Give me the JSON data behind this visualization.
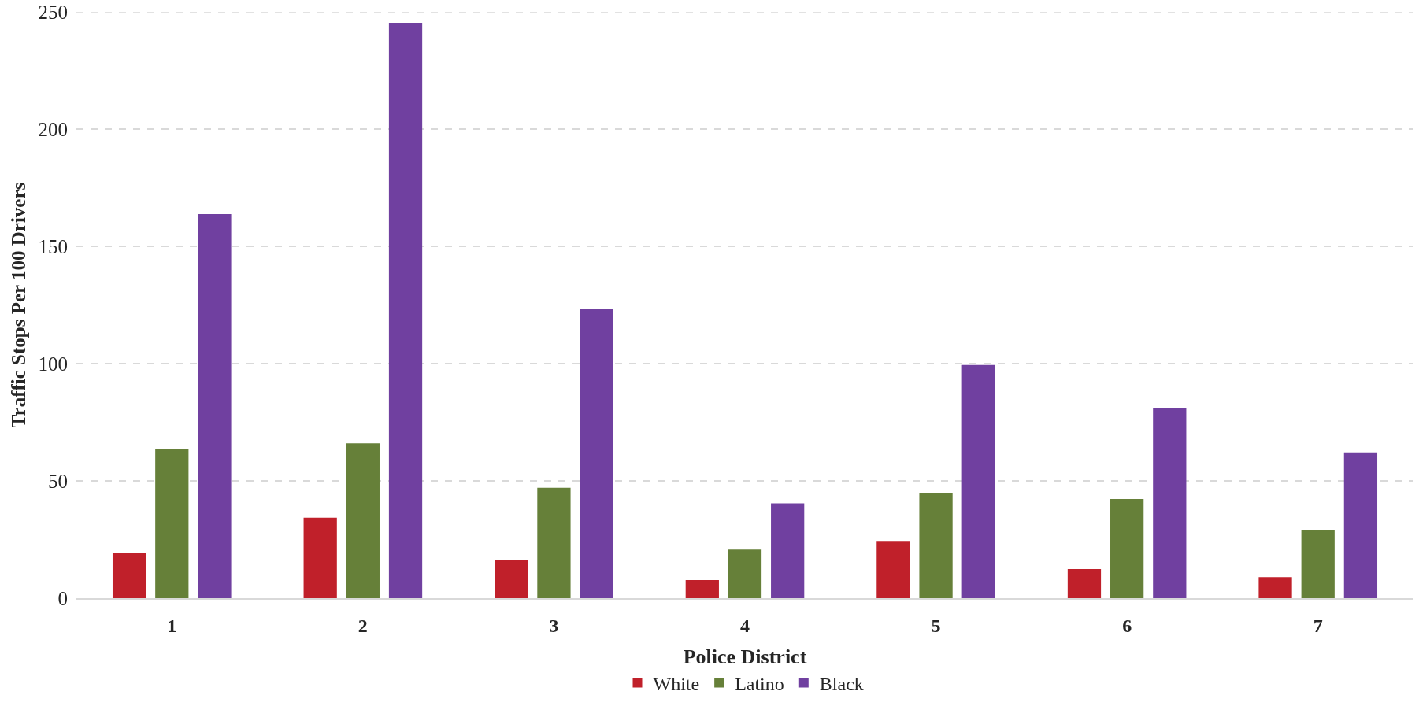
{
  "chart_data": {
    "type": "bar",
    "xlabel": "Police District",
    "ylabel": "Traffic Stops Per 100 Drivers",
    "categories": [
      "1",
      "2",
      "3",
      "4",
      "5",
      "6",
      "7"
    ],
    "series": [
      {
        "name": "White",
        "color": "#c0202a",
        "values": [
          19.4,
          34.3,
          16.2,
          7.7,
          24.4,
          12.4,
          9.0
        ]
      },
      {
        "name": "Latino",
        "color": "#668039",
        "values": [
          63.7,
          66.0,
          47.1,
          20.7,
          44.8,
          42.3,
          29.1
        ]
      },
      {
        "name": "Black",
        "color": "#7040a0",
        "values": [
          163.8,
          245.3,
          123.5,
          40.4,
          99.4,
          81.0,
          62.2
        ]
      }
    ],
    "ylim": [
      0,
      250
    ],
    "yticks": [
      0,
      50,
      100,
      150,
      200,
      250
    ],
    "grid": "y",
    "legend": "bottom"
  }
}
